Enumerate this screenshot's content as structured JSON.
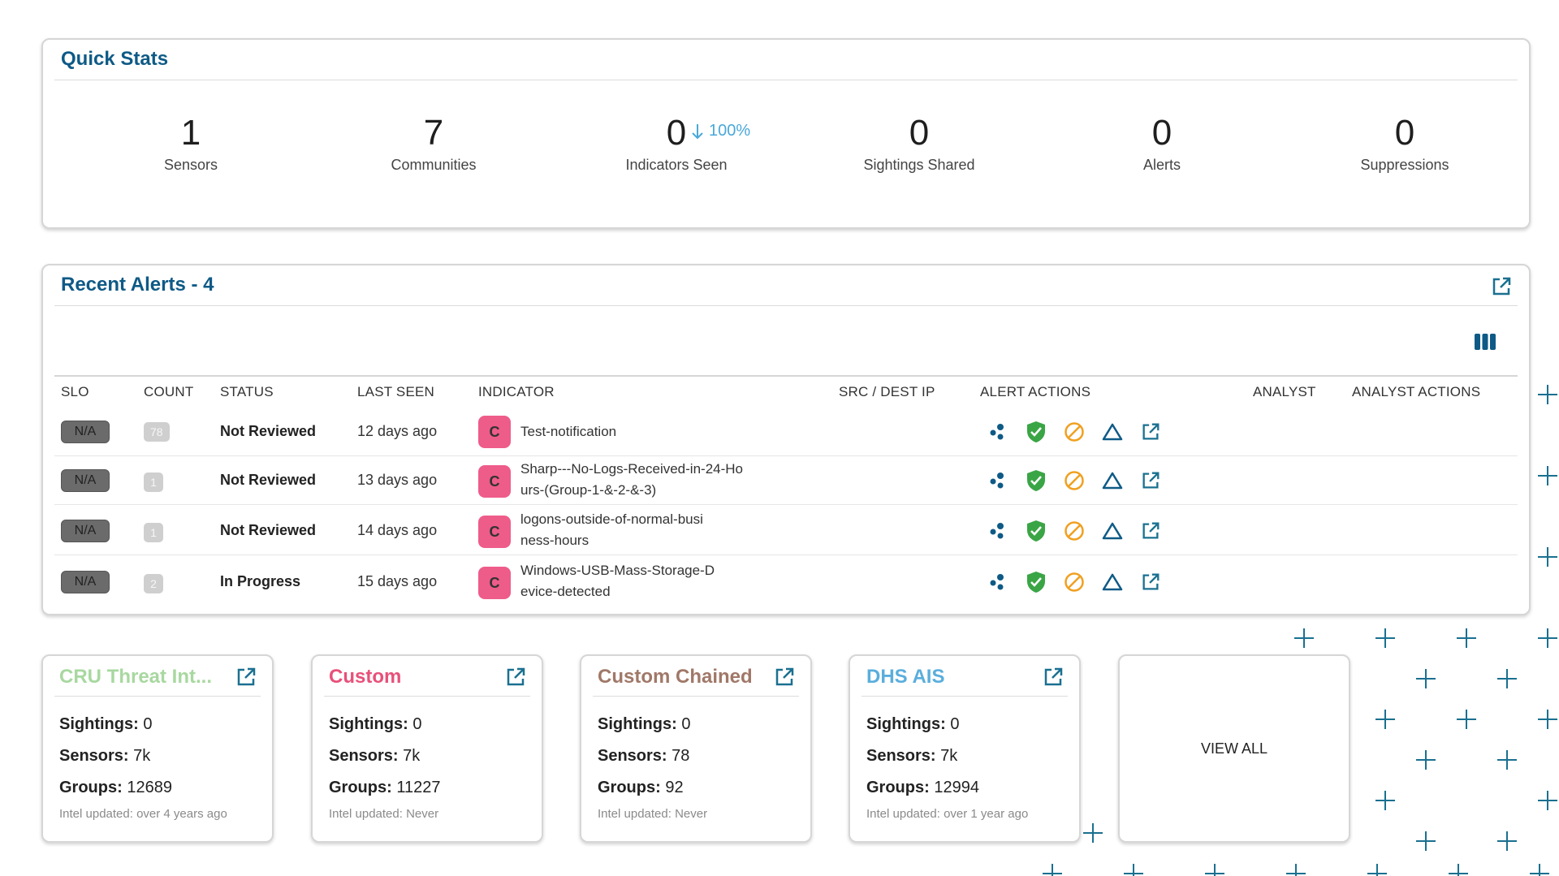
{
  "quick_stats": {
    "title": "Quick Stats",
    "stats": [
      {
        "value": "1",
        "label": "Sensors"
      },
      {
        "value": "7",
        "label": "Communities"
      },
      {
        "value": "0",
        "label": "Indicators Seen"
      },
      {
        "value": "0",
        "label": "Sightings Shared"
      },
      {
        "value": "0",
        "label": "Alerts"
      },
      {
        "value": "0",
        "label": "Suppressions"
      }
    ],
    "trend": {
      "direction": "down",
      "text": "100%"
    }
  },
  "recent_alerts": {
    "title": "Recent Alerts - 4",
    "columns": [
      "SLO",
      "COUNT",
      "STATUS",
      "LAST SEEN",
      "INDICATOR",
      "SRC / DEST IP",
      "ALERT ACTIONS",
      "ANALYST",
      "ANALYST ACTIONS"
    ],
    "rows": [
      {
        "slo": "N/A",
        "count": "78",
        "status": "Not Reviewed",
        "last_seen": "12 days ago",
        "badge": "C",
        "indicator": "Test-notification"
      },
      {
        "slo": "N/A",
        "count": "1",
        "status": "Not Reviewed",
        "last_seen": "13 days ago",
        "badge": "C",
        "indicator": "Sharp---No-Logs-Received-in-24-Hours-(Group-1-&-2-&-3)"
      },
      {
        "slo": "N/A",
        "count": "1",
        "status": "Not Reviewed",
        "last_seen": "14 days ago",
        "badge": "C",
        "indicator": "logons-outside-of-normal-business-hours"
      },
      {
        "slo": "N/A",
        "count": "2",
        "status": "In Progress",
        "last_seen": "15 days ago",
        "badge": "C",
        "indicator": "Windows-USB-Mass-Storage-Device-detected"
      }
    ]
  },
  "communities": [
    {
      "name": "CRU Threat Int...",
      "color": "#a8d8a0",
      "sightings_label": "Sightings:",
      "sightings": "0",
      "sensors_label": "Sensors:",
      "sensors": "7k",
      "groups_label": "Groups:",
      "groups": "12689",
      "updated": "Intel updated: over 4 years ago"
    },
    {
      "name": "Custom",
      "color": "#e8507a",
      "sightings_label": "Sightings:",
      "sightings": "0",
      "sensors_label": "Sensors:",
      "sensors": "7k",
      "groups_label": "Groups:",
      "groups": "11227",
      "updated": "Intel updated: Never"
    },
    {
      "name": "Custom Chained",
      "color": "#a07868",
      "sightings_label": "Sightings:",
      "sightings": "0",
      "sensors_label": "Sensors:",
      "sensors": "78",
      "groups_label": "Groups:",
      "groups": "92",
      "updated": "Intel updated: Never"
    },
    {
      "name": "DHS AIS",
      "color": "#5aaedc",
      "sightings_label": "Sightings:",
      "sightings": "0",
      "sensors_label": "Sensors:",
      "sensors": "7k",
      "groups_label": "Groups:",
      "groups": "12994",
      "updated": "Intel updated: over 1 year ago"
    }
  ],
  "view_all": {
    "label": "VIEW ALL"
  },
  "colors": {
    "title": "#0e5a86",
    "accent": "#1a7090",
    "ok_green": "#3aa545",
    "warn_orange": "#f0a020"
  }
}
